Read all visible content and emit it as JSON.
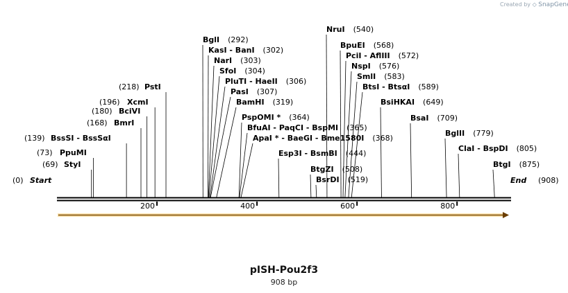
{
  "credit": {
    "created_by": "Created by",
    "brand": "SnapGene"
  },
  "plasmid": {
    "name": "pISH-Pou2f3",
    "length_label": "908 bp",
    "total_bp": 908
  },
  "ends": {
    "start_label": "Start",
    "start_pos": "(0)",
    "end_label": "End",
    "end_pos": "(908)"
  },
  "ticks": [
    "200",
    "400",
    "600",
    "800"
  ],
  "feature": {
    "name": "orf-arrow",
    "color": "#e9a825"
  },
  "sites": [
    {
      "pos": 69,
      "text": "StyI",
      "num": "(69)"
    },
    {
      "pos": 73,
      "text": "PpuMI",
      "num": "(73)"
    },
    {
      "pos": 139,
      "text": "BssSI  -  BssSαI",
      "num": "(139)"
    },
    {
      "pos": 168,
      "text": "BmrI",
      "num": "(168)"
    },
    {
      "pos": 180,
      "text": "BciVI",
      "num": "(180)"
    },
    {
      "pos": 196,
      "text": "XcmI",
      "num": "(196)"
    },
    {
      "pos": 218,
      "text": "PstI",
      "num": "(218)"
    },
    {
      "pos": 292,
      "text": "BglI",
      "num": "(292)"
    },
    {
      "pos": 302,
      "text": "KasI  -  BanI",
      "num": "(302)"
    },
    {
      "pos": 303,
      "text": "NarI",
      "num": "(303)"
    },
    {
      "pos": 304,
      "text": "SfoI",
      "num": "(304)"
    },
    {
      "pos": 306,
      "text": "PluTI  -  HaeII",
      "num": "(306)"
    },
    {
      "pos": 307,
      "text": "PasI",
      "num": "(307)"
    },
    {
      "pos": 319,
      "text": "BamHI",
      "num": "(319)"
    },
    {
      "pos": 364,
      "text": "PspOMI *",
      "num": "(364)"
    },
    {
      "pos": 365,
      "text": "BfuAI  -  PaqCI  -  BspMI",
      "num": "(365)"
    },
    {
      "pos": 368,
      "text": "ApaI *  -  BaeGI  -  Bme1580I",
      "num": "(368)"
    },
    {
      "pos": 444,
      "text": "Esp3I  -  BsmBI",
      "num": "(444)"
    },
    {
      "pos": 508,
      "text": "BtgZI",
      "num": "(508)"
    },
    {
      "pos": 519,
      "text": "BsrDI",
      "num": "(519)"
    },
    {
      "pos": 540,
      "text": "NruI",
      "num": "(540)"
    },
    {
      "pos": 568,
      "text": "BpuEI",
      "num": "(568)"
    },
    {
      "pos": 572,
      "text": "PciI  -  AflIII",
      "num": "(572)"
    },
    {
      "pos": 576,
      "text": "NspI",
      "num": "(576)"
    },
    {
      "pos": 583,
      "text": "SmlI",
      "num": "(583)"
    },
    {
      "pos": 589,
      "text": "BtsI  -  BtsαI",
      "num": "(589)"
    },
    {
      "pos": 649,
      "text": "BsiHKAI",
      "num": "(649)"
    },
    {
      "pos": 709,
      "text": "BsaI",
      "num": "(709)"
    },
    {
      "pos": 779,
      "text": "BglII",
      "num": "(779)"
    },
    {
      "pos": 805,
      "text": "ClaI  -  BspDI",
      "num": "(805)"
    },
    {
      "pos": 875,
      "text": "BtgI",
      "num": "(875)"
    }
  ]
}
